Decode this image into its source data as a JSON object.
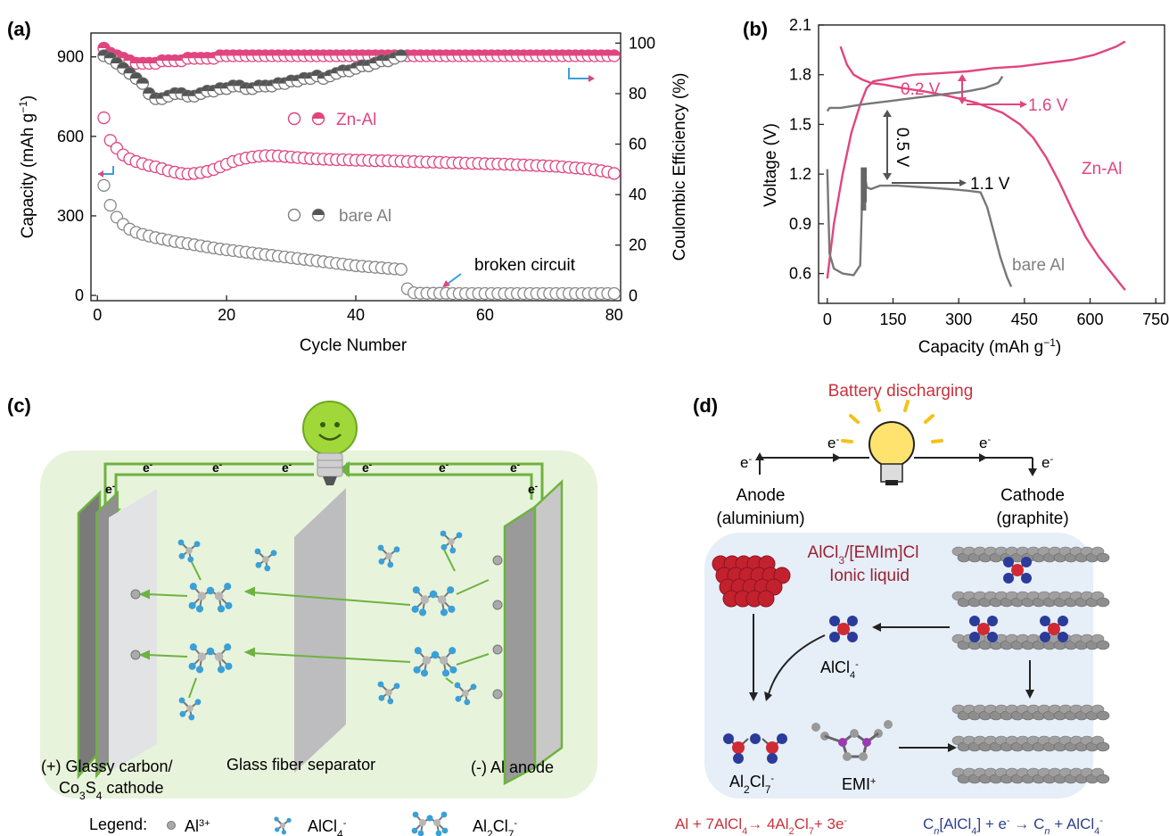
{
  "chart_data": [
    {
      "panel_label": "(a)",
      "type": "scatter",
      "xlabel": "Cycle Number",
      "ylabel": "Capacity (mAh g",
      "ylabel_sup": "−1",
      "ylabel_end": ")",
      "y2label": "Coulombic Efficiency (%)",
      "xlim": [
        -1,
        81
      ],
      "xticks": [
        0,
        20,
        40,
        60,
        80
      ],
      "ylim": [
        -20,
        990
      ],
      "yticks": [
        0,
        300,
        600,
        900
      ],
      "y2lim": [
        -2,
        104
      ],
      "y2ticks": [
        0,
        20,
        40,
        60,
        80,
        100
      ],
      "legend": [
        {
          "label": "Zn-Al",
          "color": "#e0457f"
        },
        {
          "label": "bare Al",
          "color": "#808080"
        }
      ],
      "annotation": "broken circuit",
      "series": [
        {
          "name": "Zn-Al",
          "kind": "capacity",
          "color": "#e0457f",
          "x": [
            1,
            2,
            3,
            4,
            5,
            6,
            7,
            8,
            9,
            10,
            11,
            12,
            13,
            14,
            15,
            16,
            17,
            18,
            19,
            20,
            21,
            22,
            23,
            24,
            25,
            26,
            27,
            28,
            29,
            30,
            31,
            32,
            33,
            34,
            35,
            36,
            37,
            38,
            39,
            40,
            41,
            42,
            43,
            44,
            45,
            46,
            47,
            48,
            49,
            50,
            51,
            52,
            53,
            54,
            55,
            56,
            57,
            58,
            59,
            60,
            61,
            62,
            63,
            64,
            65,
            66,
            67,
            68,
            69,
            70,
            71,
            72,
            73,
            74,
            75,
            76,
            77,
            78,
            79,
            80
          ],
          "y": [
            670,
            585,
            555,
            530,
            515,
            505,
            497,
            490,
            485,
            478,
            470,
            465,
            460,
            458,
            460,
            463,
            468,
            475,
            485,
            495,
            505,
            512,
            518,
            522,
            525,
            527,
            527,
            526,
            524,
            522,
            520,
            518,
            516,
            515,
            514,
            513,
            512,
            512,
            511,
            510,
            510,
            509,
            508,
            508,
            508,
            507,
            506,
            505,
            505,
            504,
            503,
            503,
            502,
            501,
            500,
            500,
            499,
            498,
            498,
            497,
            496,
            496,
            495,
            494,
            493,
            492,
            491,
            490,
            489,
            488,
            487,
            485,
            483,
            481,
            479,
            477,
            474,
            470,
            466,
            460
          ]
        },
        {
          "name": "bare Al",
          "kind": "capacity",
          "color": "#888888",
          "x": [
            1,
            2,
            3,
            4,
            5,
            6,
            7,
            8,
            9,
            10,
            11,
            12,
            13,
            14,
            15,
            16,
            17,
            18,
            19,
            20,
            21,
            22,
            23,
            24,
            25,
            26,
            27,
            28,
            29,
            30,
            31,
            32,
            33,
            34,
            35,
            36,
            37,
            38,
            39,
            40,
            41,
            42,
            43,
            44,
            45,
            46,
            47,
            48,
            49,
            50,
            51,
            52,
            53,
            54,
            55,
            56,
            57,
            58,
            59,
            60,
            61,
            62,
            63,
            64,
            65,
            66,
            67,
            68,
            69,
            70,
            71,
            72,
            73,
            74,
            75,
            76,
            77,
            78,
            79,
            80
          ],
          "y": [
            415,
            340,
            295,
            268,
            250,
            238,
            230,
            224,
            218,
            213,
            208,
            203,
            199,
            195,
            191,
            187,
            183,
            179,
            175,
            172,
            169,
            166,
            163,
            160,
            157,
            154,
            151,
            148,
            145,
            142,
            139,
            136,
            133,
            130,
            127,
            124,
            121,
            118,
            115,
            112,
            110,
            108,
            106,
            104,
            102,
            100,
            98,
            25,
            10,
            8,
            8,
            8,
            8,
            8,
            7,
            7,
            7,
            7,
            7,
            7,
            7,
            7,
            7,
            7,
            7,
            7,
            7,
            7,
            7,
            7,
            7,
            7,
            7,
            7,
            7,
            7,
            7,
            7,
            7,
            7
          ]
        },
        {
          "name": "Zn-Al",
          "kind": "coulombic_efficiency",
          "color": "#e0457f",
          "x": [
            1,
            2,
            3,
            4,
            5,
            6,
            7,
            8,
            9,
            10,
            11,
            12,
            13,
            14,
            15,
            16,
            17,
            18,
            19,
            20,
            21,
            22,
            23,
            24,
            25,
            26,
            27,
            28,
            29,
            30,
            31,
            32,
            33,
            34,
            35,
            36,
            37,
            38,
            39,
            40,
            41,
            42,
            43,
            44,
            45,
            46,
            47,
            48,
            49,
            50,
            51,
            52,
            53,
            54,
            55,
            56,
            57,
            58,
            59,
            60,
            61,
            62,
            63,
            64,
            65,
            66,
            67,
            68,
            69,
            70,
            71,
            72,
            73,
            74,
            75,
            76,
            77,
            78,
            79,
            80
          ],
          "y": [
            98,
            96,
            95,
            94,
            93,
            92,
            92,
            92,
            92,
            93,
            93,
            93,
            93,
            94,
            94,
            94,
            94,
            94,
            95,
            95,
            95,
            95,
            95,
            95,
            95,
            95,
            95,
            95,
            95,
            95,
            95,
            95,
            95,
            95,
            95,
            95,
            95,
            95,
            95,
            95,
            95,
            95,
            95,
            95,
            95,
            95,
            95,
            95,
            95,
            95,
            95,
            95,
            95,
            95,
            95,
            95,
            95,
            95,
            95,
            95,
            95,
            95,
            95,
            95,
            95,
            95,
            95,
            95,
            95,
            95,
            95,
            95,
            95,
            95,
            95,
            95,
            95,
            95,
            95,
            95
          ]
        },
        {
          "name": "bare Al",
          "kind": "coulombic_efficiency",
          "color": "#777777",
          "x": [
            1,
            2,
            3,
            4,
            5,
            6,
            7,
            8,
            9,
            10,
            11,
            12,
            13,
            14,
            15,
            16,
            17,
            18,
            19,
            20,
            21,
            22,
            23,
            24,
            25,
            26,
            27,
            28,
            29,
            30,
            31,
            32,
            33,
            34,
            35,
            36,
            37,
            38,
            39,
            40,
            41,
            42,
            43,
            44,
            45,
            46,
            47
          ],
          "y": [
            95,
            94,
            92,
            90,
            88,
            86,
            84,
            80,
            78,
            78,
            79,
            80,
            80,
            79,
            79,
            80,
            81,
            81,
            82,
            82,
            83,
            83,
            82,
            82,
            83,
            83,
            83,
            84,
            84,
            85,
            85,
            86,
            86,
            87,
            86,
            87,
            88,
            89,
            89,
            90,
            91,
            91,
            92,
            93,
            93,
            94,
            95
          ]
        }
      ]
    },
    {
      "panel_label": "(b)",
      "type": "line",
      "xlabel": "Capacity (mAh g",
      "xlabel_sup": "−1",
      "xlabel_end": ")",
      "ylabel": "Voltage (V)",
      "xlim": [
        -20,
        770
      ],
      "xticks": [
        0,
        150,
        300,
        450,
        600,
        750
      ],
      "ylim": [
        0.42,
        2.1
      ],
      "yticks": [
        0.6,
        0.9,
        1.2,
        1.5,
        1.8,
        2.1
      ],
      "annotations": [
        "0.2 V",
        "1.6 V",
        "0.5 V",
        "1.1 V",
        "Zn-Al",
        "bare Al"
      ],
      "series": [
        {
          "name": "Zn-Al",
          "segment": "discharge",
          "color": "#e0457f",
          "x": [
            30,
            45,
            60,
            80,
            100,
            130,
            170,
            220,
            280,
            340,
            400,
            440,
            470,
            500,
            530,
            560,
            590,
            620,
            650,
            680
          ],
          "y": [
            1.97,
            1.86,
            1.8,
            1.77,
            1.75,
            1.74,
            1.72,
            1.7,
            1.67,
            1.63,
            1.57,
            1.5,
            1.42,
            1.3,
            1.15,
            0.98,
            0.82,
            0.7,
            0.6,
            0.5
          ]
        },
        {
          "name": "Zn-Al",
          "segment": "charge",
          "color": "#e0457f",
          "x": [
            0,
            15,
            35,
            55,
            75,
            90,
            105,
            150,
            200,
            260,
            320,
            380,
            440,
            500,
            560,
            610,
            640,
            660,
            680
          ],
          "y": [
            0.57,
            0.9,
            1.2,
            1.45,
            1.62,
            1.72,
            1.76,
            1.78,
            1.8,
            1.81,
            1.82,
            1.84,
            1.85,
            1.87,
            1.89,
            1.92,
            1.95,
            1.97,
            2.0
          ]
        },
        {
          "name": "bare Al",
          "segment": "charge",
          "color": "#777777",
          "x": [
            0,
            5,
            30,
            80,
            140,
            200,
            260,
            320,
            360,
            390,
            400
          ],
          "y": [
            1.58,
            1.6,
            1.6,
            1.62,
            1.64,
            1.66,
            1.68,
            1.7,
            1.72,
            1.75,
            1.79
          ]
        },
        {
          "name": "bare Al",
          "segment": "discharge",
          "color": "#777777",
          "x": [
            0,
            5,
            15,
            35,
            60,
            75,
            80,
            85,
            90,
            100,
            120,
            160,
            220,
            280,
            320,
            350,
            365,
            380,
            395,
            410,
            420
          ],
          "y": [
            1.23,
            0.72,
            0.63,
            0.6,
            0.59,
            0.65,
            1.1,
            1.2,
            1.12,
            1.11,
            1.13,
            1.13,
            1.12,
            1.11,
            1.1,
            1.09,
            1.0,
            0.85,
            0.7,
            0.58,
            0.52
          ]
        }
      ]
    }
  ],
  "panel_c": {
    "label": "(c)",
    "electron": "e",
    "electron_sup": "-",
    "cathode_label_1": "(+) Glassy carbon/",
    "cathode_label_2_a": "Co",
    "cathode_label_2_b": "3",
    "cathode_label_2_c": "S",
    "cathode_label_2_d": "4",
    "cathode_label_2_e": " cathode",
    "separator_label": "Glass fiber separator",
    "anode_label": "(-) Al anode",
    "legend_title": "Legend:",
    "legend_1": "Al",
    "legend_1_sup": "3+",
    "legend_2_a": "AlCl",
    "legend_2_b": "4",
    "legend_2_c": "-",
    "legend_3_a": "Al",
    "legend_3_b": "2",
    "legend_3_c": "Cl",
    "legend_3_d": "7",
    "legend_3_e": "-",
    "colors": {
      "green": "#6db33f",
      "bg": "#e8f3dc",
      "ion_blue": "#3aa0d8",
      "ion_gray": "#b7b7b7"
    }
  },
  "panel_d": {
    "label": "(d)",
    "title": "Battery discharging",
    "electron": "e",
    "electron_sup": "-",
    "anode_1": "Anode",
    "anode_2": "(aluminium)",
    "cathode_1": "Cathode",
    "cathode_2": "(graphite)",
    "liquid_1_a": "AlCl",
    "liquid_1_b": "3",
    "liquid_1_c": "/[EMIm]Cl",
    "liquid_2": "Ionic liquid",
    "alcl4_a": "AlCl",
    "alcl4_b": "4",
    "alcl4_c": "-",
    "al2cl7_a": "Al",
    "al2cl7_b": "2",
    "al2cl7_c": "Cl",
    "al2cl7_d": "7",
    "al2cl7_e": "-",
    "emi": "EMI",
    "emi_sup": "+",
    "eq_left": "Al + 7AlCl",
    "eq_left_b": "4",
    "eq_left_c": "→ 4Al",
    "eq_left_d": "2",
    "eq_left_e": "Cl",
    "eq_left_f": "7",
    "eq_left_g": "+ 3e",
    "eq_left_h": "-",
    "eq_right": "C",
    "eq_right_b": "n",
    "eq_right_c": "[AlCl",
    "eq_right_d": "4",
    "eq_right_e": "] + e",
    "eq_right_f": "-",
    "eq_right_g": " → C",
    "eq_right_h": "n",
    "eq_right_i": " + AlCl",
    "eq_right_j": "4",
    "eq_right_k": "-",
    "colors": {
      "red": "#c8323c",
      "navy": "#2e3f8f",
      "bg": "#e6eef8"
    }
  }
}
